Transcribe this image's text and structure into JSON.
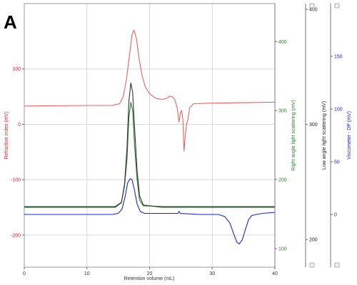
{
  "panel_label": "A",
  "chart_data": {
    "type": "line",
    "title": "",
    "xlabel": "Retention volume (mL)",
    "xlim": [
      0,
      40
    ],
    "x_ticks": [
      0,
      10,
      20,
      30,
      40
    ],
    "grid": true,
    "axes": [
      {
        "id": "ri",
        "side": "left",
        "label": "Refractive index (mV)",
        "color": "#e0202a",
        "ylim": [
          -258,
          218
        ],
        "ticks": [
          -200,
          -100,
          0,
          100
        ]
      },
      {
        "id": "rals",
        "side": "right",
        "label": "Right angle light scattering (mV)",
        "color": "#2e7d2e",
        "ylim": [
          73,
          455
        ],
        "ticks": [
          100,
          200,
          300,
          400
        ]
      },
      {
        "id": "lals",
        "side": "right",
        "label": "Low angle light scattering (mV)",
        "color": "#222222",
        "ylim": [
          176,
          405
        ],
        "ticks": [
          200,
          300,
          400
        ]
      },
      {
        "id": "visc",
        "side": "right",
        "label": "Viscometer - DP (mV)",
        "color": "#1a1adb",
        "ylim": [
          -50,
          200
        ],
        "ticks": [
          0,
          50,
          100,
          150
        ]
      }
    ],
    "series": [
      {
        "axis": "ri",
        "color": "#f06060",
        "points": [
          [
            0,
            33
          ],
          [
            10,
            34
          ],
          [
            14,
            34
          ],
          [
            15.2,
            37
          ],
          [
            15.8,
            50
          ],
          [
            16.3,
            80
          ],
          [
            16.8,
            125
          ],
          [
            17.2,
            162
          ],
          [
            17.5,
            170
          ],
          [
            17.9,
            155
          ],
          [
            18.3,
            120
          ],
          [
            18.8,
            88
          ],
          [
            19.3,
            68
          ],
          [
            20,
            55
          ],
          [
            21,
            47
          ],
          [
            22,
            45
          ],
          [
            22.8,
            47
          ],
          [
            23.2,
            51
          ],
          [
            23.6,
            50
          ],
          [
            24,
            45
          ],
          [
            24.4,
            30
          ],
          [
            24.7,
            4
          ],
          [
            24.9,
            20
          ],
          [
            25.1,
            25
          ],
          [
            25.3,
            10
          ],
          [
            25.5,
            -48
          ],
          [
            25.7,
            -20
          ],
          [
            25.9,
            0
          ],
          [
            26.1,
            8
          ],
          [
            26.4,
            30
          ],
          [
            27,
            37
          ],
          [
            29,
            38
          ],
          [
            35,
            39
          ],
          [
            40,
            40
          ]
        ]
      },
      {
        "axis": "rals",
        "color": "#2e7d2e",
        "points": [
          [
            0,
            161
          ],
          [
            14.5,
            161
          ],
          [
            15.5,
            167
          ],
          [
            16,
            190
          ],
          [
            16.4,
            230
          ],
          [
            16.7,
            290
          ],
          [
            17,
            312
          ],
          [
            17.3,
            300
          ],
          [
            17.6,
            250
          ],
          [
            18,
            200
          ],
          [
            18.4,
            170
          ],
          [
            19,
            162
          ],
          [
            22,
            161
          ],
          [
            40,
            161
          ]
        ]
      },
      {
        "axis": "lals",
        "color": "#333333",
        "points": [
          [
            0,
            228
          ],
          [
            14.5,
            228
          ],
          [
            15.5,
            232
          ],
          [
            16,
            248
          ],
          [
            16.4,
            280
          ],
          [
            16.7,
            320
          ],
          [
            17,
            336
          ],
          [
            17.3,
            328
          ],
          [
            17.6,
            298
          ],
          [
            18,
            260
          ],
          [
            18.4,
            238
          ],
          [
            19,
            230
          ],
          [
            22,
            228
          ],
          [
            40,
            228
          ]
        ]
      },
      {
        "axis": "visc",
        "color": "#2020e0",
        "points": [
          [
            0,
            0
          ],
          [
            14,
            0
          ],
          [
            15,
            1
          ],
          [
            15.6,
            5
          ],
          [
            16.1,
            17
          ],
          [
            16.5,
            30
          ],
          [
            16.9,
            34
          ],
          [
            17.2,
            33
          ],
          [
            17.6,
            23
          ],
          [
            18,
            10
          ],
          [
            18.5,
            3
          ],
          [
            19.2,
            1
          ],
          [
            22,
            1
          ],
          [
            24.5,
            1
          ],
          [
            24.7,
            3
          ],
          [
            24.9,
            1
          ],
          [
            28,
            0
          ],
          [
            31,
            0
          ],
          [
            32,
            -2
          ],
          [
            32.8,
            -8
          ],
          [
            33.4,
            -18
          ],
          [
            33.9,
            -26
          ],
          [
            34.3,
            -28
          ],
          [
            34.8,
            -24
          ],
          [
            35.3,
            -14
          ],
          [
            35.8,
            -5
          ],
          [
            36.3,
            -1
          ],
          [
            37,
            0
          ],
          [
            38,
            1
          ],
          [
            40,
            2
          ]
        ]
      }
    ]
  }
}
